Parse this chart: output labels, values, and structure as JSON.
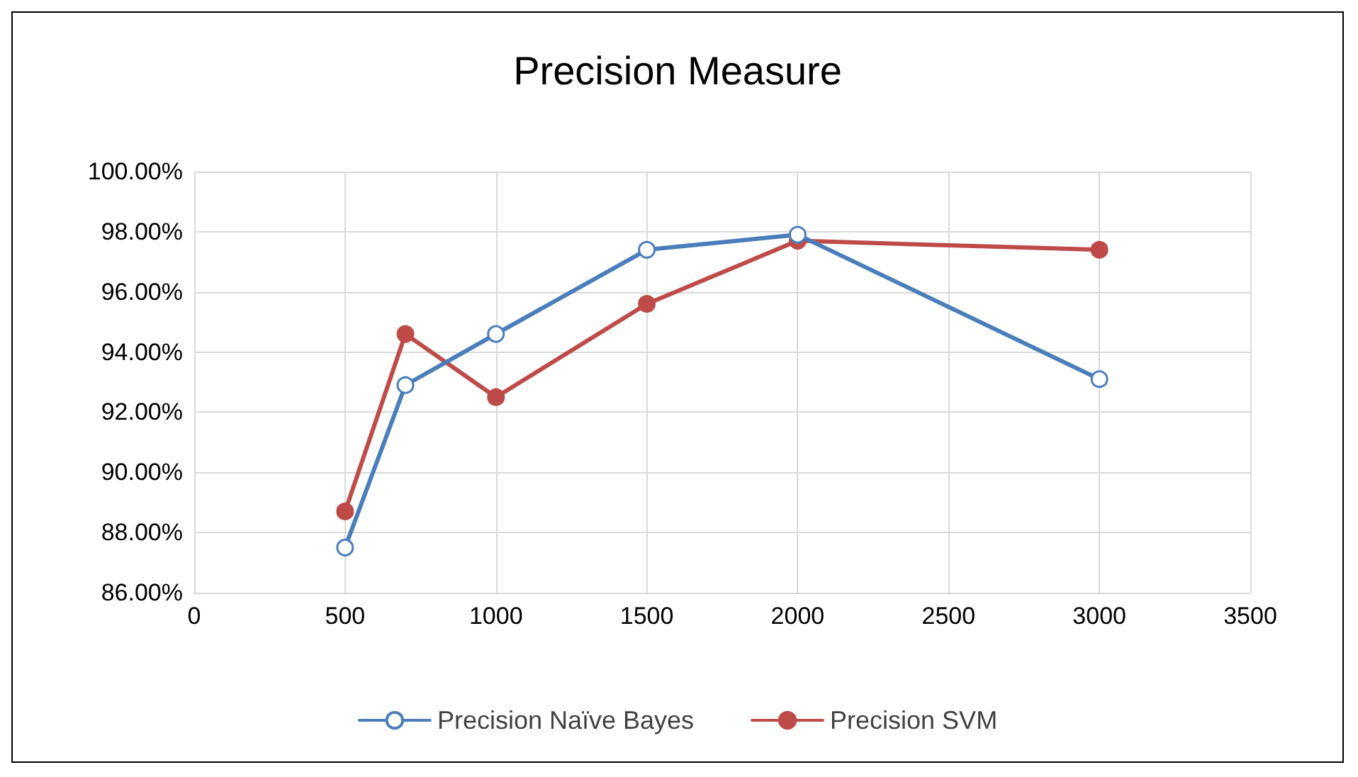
{
  "chart_data": {
    "type": "line",
    "title": "Precision Measure",
    "x": [
      500,
      700,
      1000,
      1500,
      2000,
      3000
    ],
    "series": [
      {
        "name": "Precision Naïve Bayes",
        "color": "#4a7ebb",
        "values": [
          87.5,
          92.9,
          94.6,
          97.4,
          97.9,
          93.1
        ]
      },
      {
        "name": "Precision SVM",
        "color": "#be4b48",
        "values": [
          88.7,
          94.6,
          92.5,
          95.6,
          97.7,
          97.4
        ]
      }
    ],
    "xlim": [
      0,
      3500
    ],
    "xticks": [
      0,
      500,
      1000,
      1500,
      2000,
      2500,
      3000,
      3500
    ],
    "ylim": [
      86,
      100
    ],
    "yticks": [
      {
        "value": 86,
        "label": "86.00%"
      },
      {
        "value": 88,
        "label": "88.00%"
      },
      {
        "value": 90,
        "label": "90.00%"
      },
      {
        "value": 92,
        "label": "92.00%"
      },
      {
        "value": 94,
        "label": "94.00%"
      },
      {
        "value": 96,
        "label": "96.00%"
      },
      {
        "value": 98,
        "label": "98.00%"
      },
      {
        "value": 100,
        "label": "100.00%"
      }
    ],
    "grid": true,
    "legend": "bottom",
    "marker": "circle",
    "line_style": "solid"
  }
}
